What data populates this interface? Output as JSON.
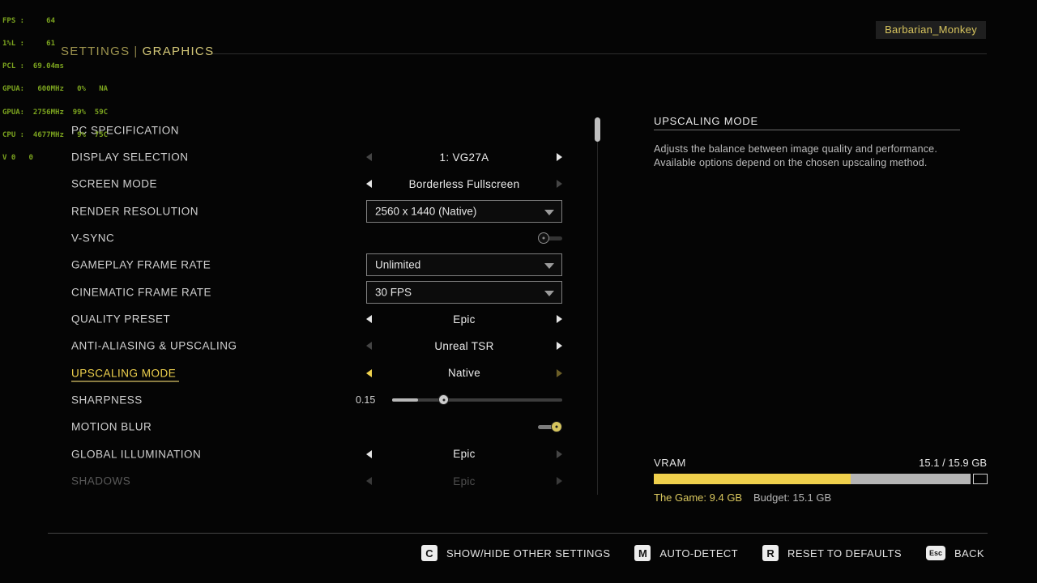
{
  "perf_overlay": {
    "lines": [
      "FPS :     64",
      "1%L :     61",
      "PCL :  69.04ms",
      "GPUA:   600MHz   0%   NA",
      "GPUA:  2756MHz  99%  59C",
      "CPU :  4677MHz   9%  75C",
      "V 0   0"
    ]
  },
  "header": {
    "section": "SETTINGS",
    "separator": "|",
    "page": "GRAPHICS"
  },
  "player": {
    "name": "Barbarian_Monkey"
  },
  "settings": {
    "rows": [
      {
        "label": "PC SPECIFICATION",
        "control": "none"
      },
      {
        "label": "DISPLAY SELECTION",
        "control": "stepper",
        "value": "1: VG27A",
        "left_arrow": "disabled",
        "right_arrow": "enabled"
      },
      {
        "label": "SCREEN MODE",
        "control": "stepper",
        "value": "Borderless Fullscreen",
        "left_arrow": "enabled",
        "right_arrow": "disabled"
      },
      {
        "label": "RENDER RESOLUTION",
        "control": "dropdown",
        "value": "2560 x 1440 (Native)"
      },
      {
        "label": "V-SYNC",
        "control": "toggle",
        "state": "off"
      },
      {
        "label": "GAMEPLAY FRAME RATE",
        "control": "dropdown",
        "value": "Unlimited"
      },
      {
        "label": "CINEMATIC FRAME RATE",
        "control": "dropdown",
        "value": "30 FPS"
      },
      {
        "label": "QUALITY PRESET",
        "control": "stepper",
        "value": "Epic",
        "left_arrow": "enabled",
        "right_arrow": "enabled"
      },
      {
        "label": "ANTI-ALIASING & UPSCALING",
        "control": "stepper",
        "value": "Unreal TSR",
        "left_arrow": "disabled",
        "right_arrow": "enabled"
      },
      {
        "label": "UPSCALING MODE",
        "control": "stepper",
        "value": "Native",
        "selected": true,
        "left_arrow": "enabled",
        "right_arrow": "disabled"
      },
      {
        "label": "SHARPNESS",
        "control": "slider",
        "value": "0.15",
        "min": 0,
        "max": 1
      },
      {
        "label": "MOTION BLUR",
        "control": "toggle",
        "state": "on"
      },
      {
        "label": "GLOBAL ILLUMINATION",
        "control": "stepper",
        "value": "Epic",
        "left_arrow": "enabled",
        "right_arrow": "disabled"
      },
      {
        "label": "SHADOWS",
        "control": "stepper",
        "value": "Epic",
        "faded": true,
        "left_arrow": "disabled",
        "right_arrow": "disabled"
      }
    ]
  },
  "info_panel": {
    "title": "UPSCALING MODE",
    "description": "Adjusts the balance between image quality and performance. Available options depend on the chosen upscaling method."
  },
  "vram": {
    "label": "VRAM",
    "usage": "15.1 / 15.9 GB",
    "game_label": "The Game: 9.4 GB",
    "budget_label": "Budget: 15.1 GB",
    "game_gb": 9.4,
    "used_gb": 15.1,
    "total_gb": 15.9
  },
  "footer": {
    "actions": [
      {
        "key": "C",
        "label": "SHOW/HIDE OTHER SETTINGS"
      },
      {
        "key": "M",
        "label": "AUTO-DETECT"
      },
      {
        "key": "R",
        "label": "RESET TO DEFAULTS"
      },
      {
        "key": "Esc",
        "label": "BACK"
      }
    ]
  },
  "colors": {
    "accent": "#f0d24e",
    "perf_green": "#7ca41f",
    "header_gold": "#d4c878"
  }
}
